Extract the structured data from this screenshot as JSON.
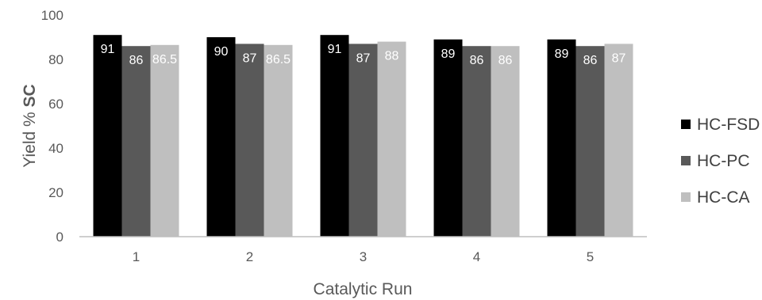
{
  "chart_data": {
    "type": "bar",
    "categories": [
      "1",
      "2",
      "3",
      "4",
      "5"
    ],
    "series": [
      {
        "name": "HC-FSD",
        "values": [
          91,
          90,
          91,
          89,
          89
        ],
        "color": "#000000"
      },
      {
        "name": "HC-PC",
        "values": [
          86,
          87,
          87,
          86,
          86
        ],
        "color": "#595959"
      },
      {
        "name": "HC-CA",
        "values": [
          86.5,
          86.5,
          88,
          86,
          87
        ],
        "color": "#bfbfbf"
      }
    ],
    "data_labels": [
      [
        "91",
        "90",
        "91",
        "89",
        "89"
      ],
      [
        "86",
        "87",
        "87",
        "86",
        "86"
      ],
      [
        "86.5",
        "86.5",
        "88",
        "86",
        "87"
      ]
    ],
    "yticks": [
      "0",
      "20",
      "40",
      "60",
      "80",
      "100"
    ],
    "ylim": [
      0,
      100
    ],
    "xlabel": "Catalytic Run",
    "ylabel_prefix": "Yield %",
    "ylabel_bold": "SC",
    "legend_position": "right",
    "grid": false
  }
}
